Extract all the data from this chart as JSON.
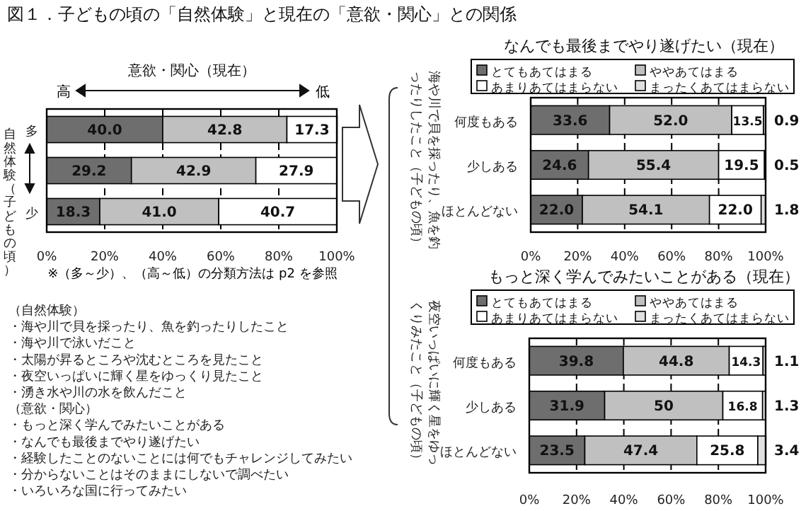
{
  "chart_data": [
    {
      "type": "bar",
      "orientation": "horizontal",
      "stacked": true,
      "title": "図１．子どもの頃の「自然体験」と現在の「意欲・関心」との関係",
      "xlabel": "意欲・関心（現在）",
      "ylabel": "自然体験（子どもの頃）",
      "categories": [
        "多",
        null,
        "少"
      ],
      "series": [
        {
          "color": "#6e6e6e",
          "values": [
            40.0,
            29.2,
            18.3
          ],
          "value_labels": [
            "40.0",
            "29.2",
            "18.3"
          ]
        },
        {
          "color": "#c0c0c0",
          "values": [
            42.8,
            42.9,
            41.0
          ],
          "value_labels": [
            "42.8",
            "42.9",
            "41.0"
          ]
        },
        {
          "color": "#ffffff",
          "values": [
            17.3,
            27.9,
            40.7
          ],
          "value_labels": [
            "17.3",
            "27.9",
            "40.7"
          ]
        }
      ],
      "xlim": [
        0,
        100
      ],
      "xticks": [
        {
          "value": 0,
          "label": "0%"
        },
        {
          "value": 20,
          "label": "20%"
        },
        {
          "value": 40,
          "label": "40%"
        },
        {
          "value": 60,
          "label": "60%"
        },
        {
          "value": 80,
          "label": "80%"
        },
        {
          "value": 100,
          "label": "100%"
        }
      ],
      "grid": "x",
      "legend": false,
      "annotations": [
        "高",
        "低",
        "※（多～少）、（高～低）の分類方法は p2 を参照",
        "（自然体験）",
        "・海や川で貝を採ったり、魚を釣ったりしたこと",
        "・海や川で泳いだこと",
        "・太陽が昇るところや沈むところを見たこと",
        "・夜空いっぱいに輝く星をゆっくり見たこと",
        "・湧き水や川の水を飲んだこと",
        "（意欲・関心）",
        "・もっと深く学んでみたいことがある",
        "・なんでも最後までやり遂げたい",
        "・経験したことのないことには何でもチャレンジしてみたい",
        "・分からないことはそのままにしないで調べたい",
        "・いろいろな国に行ってみたい"
      ]
    },
    {
      "type": "bar",
      "orientation": "horizontal",
      "stacked": true,
      "title": "なんでも最後までやり遂げたい（現在）",
      "ylabel": "海や川で貝を採ったり、魚を釣ったりしたこと（子どもの頃）",
      "categories": [
        "何度もある",
        "少しある",
        "ほとんどない"
      ],
      "series": [
        {
          "name": "とてもあてはまる",
          "color": "#6e6e6e",
          "values": [
            33.6,
            24.6,
            22.0
          ],
          "value_labels": [
            "33.6",
            "24.6",
            "22.0"
          ]
        },
        {
          "name": "ややあてはまる",
          "color": "#c0c0c0",
          "values": [
            52.0,
            55.4,
            54.1
          ],
          "value_labels": [
            "52.0",
            "55.4",
            "54.1"
          ]
        },
        {
          "name": "あまりあてはまらない",
          "color": "#ffffff",
          "values": [
            13.5,
            19.5,
            22.0
          ],
          "value_labels": [
            "13.5",
            "19.5",
            "22.0"
          ]
        },
        {
          "name": "まったくあてはまらない",
          "color": "#e0e0e0",
          "values": [
            0.9,
            0.5,
            1.8
          ],
          "value_labels": [
            "0.9",
            "0.5",
            "1.8"
          ]
        }
      ],
      "xlim": [
        0,
        100
      ],
      "xticks": [
        {
          "value": 0,
          "label": "0%"
        },
        {
          "value": 20,
          "label": "20%"
        },
        {
          "value": 40,
          "label": "40%"
        },
        {
          "value": 60,
          "label": "60%"
        },
        {
          "value": 80,
          "label": "80%"
        },
        {
          "value": 100,
          "label": "100%"
        }
      ],
      "grid": "x",
      "legend": "top"
    },
    {
      "type": "bar",
      "orientation": "horizontal",
      "stacked": true,
      "title": "もっと深く学んでみたいことがある（現在）",
      "ylabel": "夜空いっぱいに輝く星をゆっくりみたこと（子どもの頃）",
      "categories": [
        "何度もある",
        "少しある",
        "ほとんどない"
      ],
      "series": [
        {
          "name": "とてもあてはまる",
          "color": "#6e6e6e",
          "values": [
            39.8,
            31.9,
            23.5
          ],
          "value_labels": [
            "39.8",
            "31.9",
            "23.5"
          ]
        },
        {
          "name": "ややあてはまる",
          "color": "#c0c0c0",
          "values": [
            44.8,
            50,
            47.4
          ],
          "value_labels": [
            "44.8",
            "50",
            "47.4"
          ]
        },
        {
          "name": "あまりあてはまらない",
          "color": "#ffffff",
          "values": [
            14.3,
            16.8,
            25.8
          ],
          "value_labels": [
            "14.3",
            "16.8",
            "25.8"
          ]
        },
        {
          "name": "まったくあてはまらない",
          "color": "#e0e0e0",
          "values": [
            1.1,
            1.3,
            3.4
          ],
          "value_labels": [
            "1.1",
            "1.3",
            "3.4"
          ]
        }
      ],
      "xlim": [
        0,
        100
      ],
      "xticks": [
        {
          "value": 0,
          "label": "0%"
        },
        {
          "value": 20,
          "label": "20%"
        },
        {
          "value": 40,
          "label": "40%"
        },
        {
          "value": 60,
          "label": "60%"
        },
        {
          "value": 80,
          "label": "80%"
        },
        {
          "value": 100,
          "label": "100%"
        }
      ],
      "grid": "x",
      "legend": "top"
    }
  ]
}
